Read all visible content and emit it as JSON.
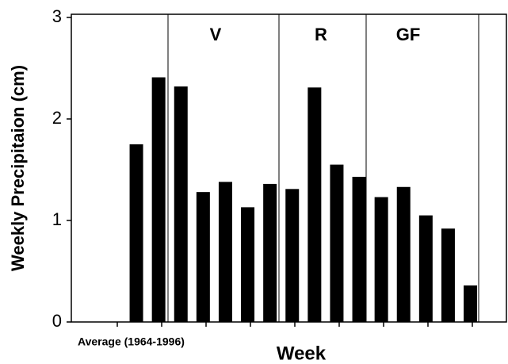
{
  "chart_data": {
    "type": "bar",
    "ylabel": "Weekly Precipitaion (cm)",
    "xlabel": "Week",
    "x_note": "Average (1964-1996)",
    "regions": [
      "V",
      "R",
      "GF"
    ],
    "categories": [
      null,
      null,
      null,
      null,
      null,
      null,
      null,
      null,
      null,
      null,
      null,
      null,
      null,
      null,
      null,
      null
    ],
    "values": [
      1.75,
      2.41,
      2.32,
      1.28,
      1.38,
      1.13,
      1.36,
      1.31,
      2.31,
      1.55,
      1.43,
      1.23,
      1.33,
      1.05,
      0.92,
      0.36
    ],
    "color": "#000000",
    "ylim": [
      0,
      3
    ],
    "yticks": [
      0,
      1,
      2,
      3
    ],
    "grid": false
  }
}
